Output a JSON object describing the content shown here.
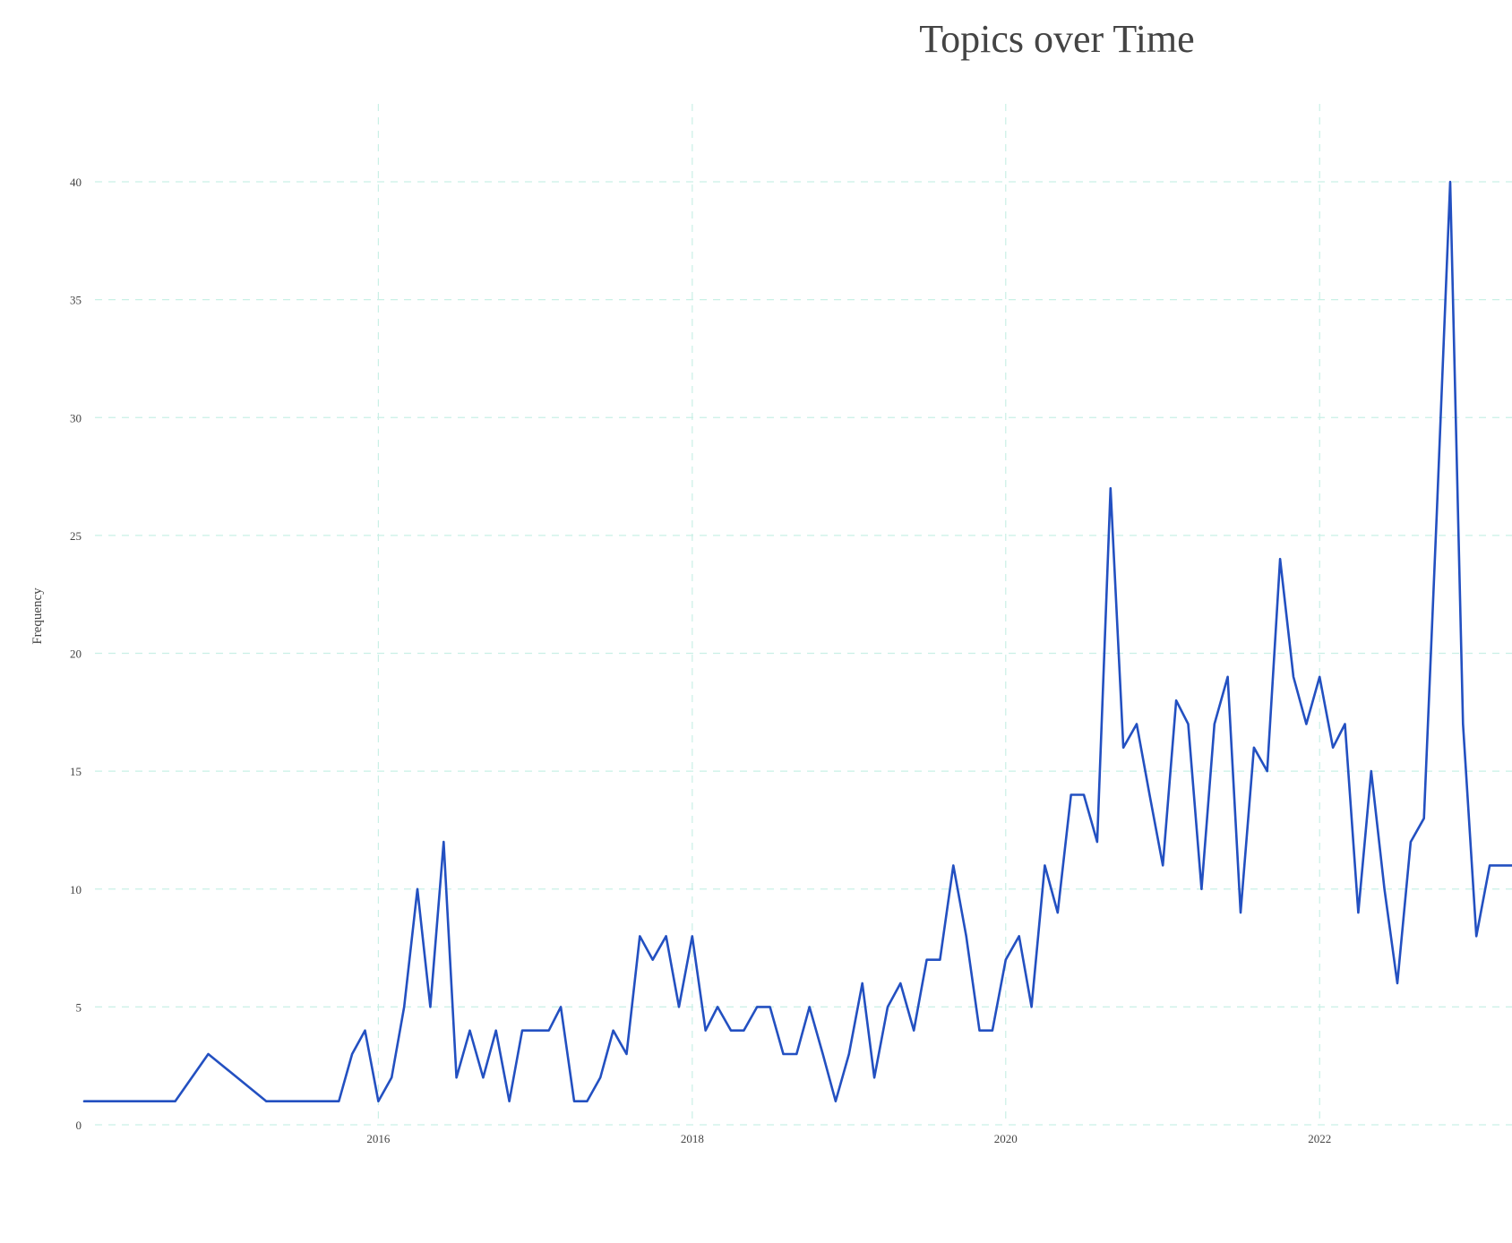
{
  "chart_data": {
    "type": "line",
    "title": "Topics over Time",
    "xlabel": "",
    "ylabel": "Frequency",
    "x_tick_labels": [
      "2016",
      "2018",
      "2020",
      "2022"
    ],
    "y_tick_labels": [
      "0",
      "5",
      "10",
      "15",
      "20",
      "25",
      "30",
      "35",
      "40"
    ],
    "ylim": [
      0,
      43
    ],
    "xlim": [
      "2014-02-15",
      "2023-03-25"
    ],
    "grid": true,
    "legend": "none",
    "series": [
      {
        "color": "#2350c1",
        "x": [
          "2014-02-15",
          "2014-09-15",
          "2014-12-01",
          "2015-04-15",
          "2015-10-01",
          "2015-11-01",
          "2015-12-01",
          "2016-01-01",
          "2016-02-01",
          "2016-03-01",
          "2016-04-01",
          "2016-05-01",
          "2016-06-01",
          "2016-07-01",
          "2016-08-01",
          "2016-09-01",
          "2016-10-01",
          "2016-11-01",
          "2016-12-01",
          "2017-01-01",
          "2017-02-01",
          "2017-03-01",
          "2017-04-01",
          "2017-05-01",
          "2017-06-01",
          "2017-07-01",
          "2017-08-01",
          "2017-09-01",
          "2017-10-01",
          "2017-11-01",
          "2017-12-01",
          "2018-01-01",
          "2018-02-01",
          "2018-03-01",
          "2018-04-01",
          "2018-05-01",
          "2018-06-01",
          "2018-07-01",
          "2018-08-01",
          "2018-09-01",
          "2018-10-01",
          "2018-11-01",
          "2018-12-01",
          "2019-01-01",
          "2019-02-01",
          "2019-03-01",
          "2019-04-01",
          "2019-05-01",
          "2019-06-01",
          "2019-07-01",
          "2019-08-01",
          "2019-09-01",
          "2019-10-01",
          "2019-11-01",
          "2019-12-01",
          "2020-01-01",
          "2020-02-01",
          "2020-03-01",
          "2020-04-01",
          "2020-05-01",
          "2020-06-01",
          "2020-07-01",
          "2020-08-01",
          "2020-09-01",
          "2020-10-01",
          "2020-11-01",
          "2020-12-01",
          "2021-01-01",
          "2021-02-01",
          "2021-03-01",
          "2021-04-01",
          "2021-05-01",
          "2021-06-01",
          "2021-07-01",
          "2021-08-01",
          "2021-09-01",
          "2021-10-01",
          "2021-11-01",
          "2021-12-01",
          "2022-01-01",
          "2022-02-01",
          "2022-03-01",
          "2022-04-01",
          "2022-05-01",
          "2022-06-01",
          "2022-07-01",
          "2022-08-01",
          "2022-09-01",
          "2022-10-01",
          "2022-11-01",
          "2022-12-01",
          "2023-01-01",
          "2023-02-01",
          "2023-03-01",
          "2023-03-25"
        ],
        "y": [
          1,
          1,
          3,
          1,
          1,
          3,
          4,
          1,
          2,
          5,
          10,
          5,
          12,
          2,
          4,
          2,
          4,
          1,
          4,
          4,
          4,
          5,
          1,
          1,
          2,
          4,
          3,
          8,
          7,
          8,
          5,
          8,
          4,
          5,
          4,
          4,
          5,
          5,
          3,
          3,
          5,
          3,
          1,
          3,
          6,
          2,
          5,
          6,
          4,
          7,
          7,
          11,
          8,
          4,
          4,
          7,
          8,
          5,
          11,
          9,
          14,
          14,
          12,
          27,
          16,
          17,
          14,
          11,
          18,
          17,
          10,
          17,
          19,
          9,
          16,
          15,
          24,
          19,
          17,
          19,
          16,
          17,
          9,
          15,
          10,
          6,
          12,
          13,
          26,
          40,
          17,
          8,
          11,
          11,
          11
        ]
      }
    ]
  }
}
